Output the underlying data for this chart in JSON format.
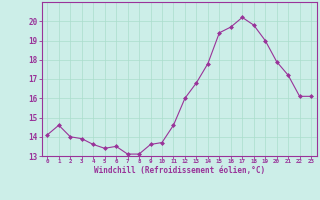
{
  "x": [
    0,
    1,
    2,
    3,
    4,
    5,
    6,
    7,
    8,
    9,
    10,
    11,
    12,
    13,
    14,
    15,
    16,
    17,
    18,
    19,
    20,
    21,
    22,
    23
  ],
  "y": [
    14.1,
    14.6,
    14.0,
    13.9,
    13.6,
    13.4,
    13.5,
    13.1,
    13.1,
    13.6,
    13.7,
    14.6,
    16.0,
    16.8,
    17.8,
    19.4,
    19.7,
    20.2,
    19.8,
    19.0,
    17.9,
    17.2,
    16.1,
    16.1
  ],
  "ylim": [
    13,
    21
  ],
  "xlim": [
    -0.5,
    23.5
  ],
  "yticks": [
    13,
    14,
    15,
    16,
    17,
    18,
    19,
    20
  ],
  "xtick_labels": [
    "0",
    "1",
    "2",
    "3",
    "4",
    "5",
    "6",
    "7",
    "8",
    "9",
    "10",
    "11",
    "12",
    "13",
    "14",
    "15",
    "16",
    "17",
    "18",
    "19",
    "20",
    "21",
    "22",
    "23"
  ],
  "xlabel": "Windchill (Refroidissement éolien,°C)",
  "line_color": "#993399",
  "marker_color": "#993399",
  "bg_color": "#cceee8",
  "grid_color": "#aaddcc",
  "axis_color": "#993399",
  "tick_color": "#993399",
  "label_color": "#993399"
}
